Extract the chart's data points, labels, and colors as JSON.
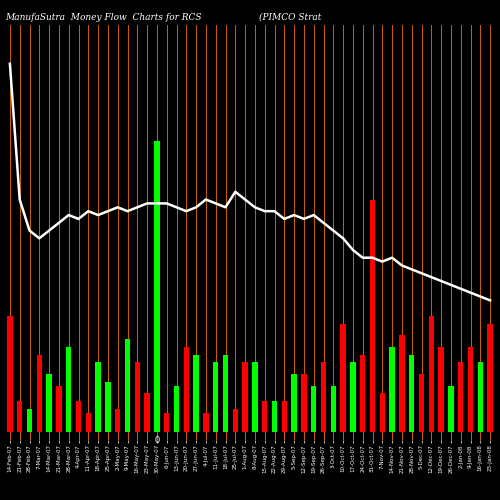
{
  "title": "ManufaSutra  Money Flow  Charts for RCS                    (PIMCO Strat",
  "background_color": "#000000",
  "orange_line_color": "#cc6600",
  "white_line_color": "#ffffff",
  "n_bars": 50,
  "categories": [
    "14-Feb-07",
    "21-Feb-07",
    "28-Feb-07",
    "7-Mar-07",
    "14-Mar-07",
    "21-Mar-07",
    "28-Mar-07",
    "4-Apr-07",
    "11-Apr-07",
    "18-Apr-07",
    "25-Apr-07",
    "2-May-07",
    "9-May-07",
    "16-May-07",
    "23-May-07",
    "30-May-07",
    "6-Jun-07",
    "13-Jun-07",
    "20-Jun-07",
    "27-Jun-07",
    "4-Jul-07",
    "11-Jul-07",
    "18-Jul-07",
    "25-Jul-07",
    "1-Aug-07",
    "8-Aug-07",
    "15-Aug-07",
    "22-Aug-07",
    "29-Aug-07",
    "5-Sep-07",
    "12-Sep-07",
    "19-Sep-07",
    "26-Sep-07",
    "3-Oct-07",
    "10-Oct-07",
    "17-Oct-07",
    "24-Oct-07",
    "31-Oct-07",
    "7-Nov-07",
    "14-Nov-07",
    "21-Nov-07",
    "28-Nov-07",
    "5-Dec-07",
    "12-Dec-07",
    "19-Dec-07",
    "26-Dec-07",
    "2-Jan-08",
    "9-Jan-08",
    "16-Jan-08",
    "23-Jan-08"
  ],
  "bar_heights": [
    0.3,
    0.08,
    0.06,
    0.2,
    0.15,
    0.12,
    0.22,
    0.08,
    0.05,
    0.18,
    0.13,
    0.06,
    0.24,
    0.18,
    0.1,
    0.75,
    0.05,
    0.12,
    0.22,
    0.2,
    0.05,
    0.18,
    0.2,
    0.06,
    0.18,
    0.18,
    0.08,
    0.08,
    0.08,
    0.15,
    0.15,
    0.12,
    0.18,
    0.12,
    0.28,
    0.18,
    0.2,
    0.6,
    0.1,
    0.22,
    0.25,
    0.2,
    0.15,
    0.3,
    0.22,
    0.12,
    0.18,
    0.22,
    0.18,
    0.28
  ],
  "bar_colors": [
    "#ff0000",
    "#ff0000",
    "#00ff00",
    "#ff0000",
    "#00ff00",
    "#ff0000",
    "#00ff00",
    "#ff0000",
    "#ff0000",
    "#00ff00",
    "#00ff00",
    "#ff0000",
    "#00ff00",
    "#ff0000",
    "#ff0000",
    "#00ff00",
    "#ff0000",
    "#00ff00",
    "#ff0000",
    "#00ff00",
    "#ff0000",
    "#00ff00",
    "#00ff00",
    "#ff0000",
    "#ff0000",
    "#00ff00",
    "#ff0000",
    "#00ff00",
    "#ff0000",
    "#00ff00",
    "#ff0000",
    "#00ff00",
    "#ff0000",
    "#00ff00",
    "#ff0000",
    "#00ff00",
    "#ff0000",
    "#ff0000",
    "#ff0000",
    "#00ff00",
    "#ff0000",
    "#00ff00",
    "#ff0000",
    "#ff0000",
    "#ff0000",
    "#00ff00",
    "#ff0000",
    "#ff0000",
    "#00ff00",
    "#ff0000"
  ],
  "price_line": [
    0.95,
    0.6,
    0.52,
    0.5,
    0.52,
    0.54,
    0.56,
    0.55,
    0.57,
    0.56,
    0.57,
    0.58,
    0.57,
    0.58,
    0.59,
    0.59,
    0.59,
    0.58,
    0.57,
    0.58,
    0.6,
    0.59,
    0.58,
    0.62,
    0.6,
    0.58,
    0.57,
    0.57,
    0.55,
    0.56,
    0.55,
    0.56,
    0.54,
    0.52,
    0.5,
    0.47,
    0.45,
    0.45,
    0.44,
    0.45,
    0.43,
    0.42,
    0.41,
    0.4,
    0.39,
    0.38,
    0.37,
    0.36,
    0.35,
    0.34
  ],
  "ylim_min": -0.02,
  "ylim_max": 1.05
}
